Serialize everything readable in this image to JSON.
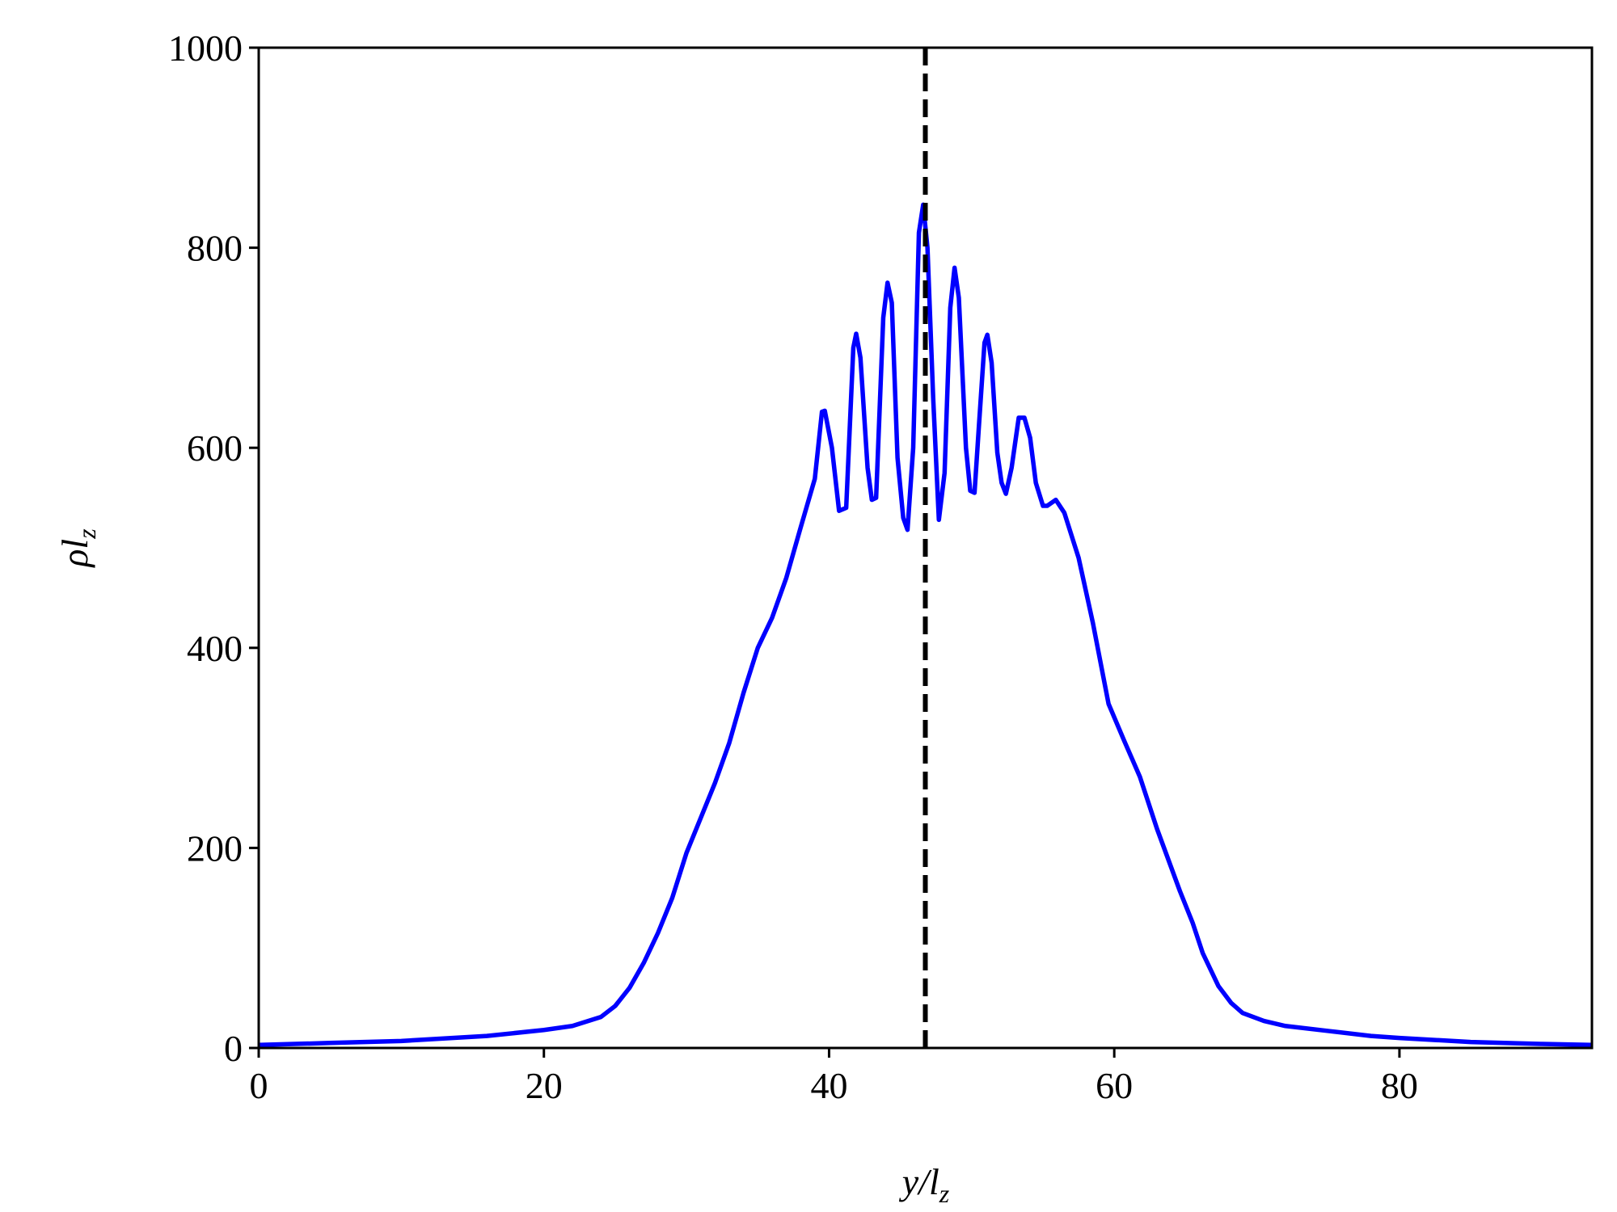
{
  "chart_data": {
    "type": "line",
    "xlabel": [
      "y/l",
      "z"
    ],
    "ylabel": [
      "ρl",
      "z"
    ],
    "x": [
      0,
      5,
      10,
      16,
      20,
      22,
      24,
      25,
      26,
      27,
      28,
      29,
      30,
      31,
      32,
      33,
      34,
      35,
      36,
      37,
      38,
      39,
      39.5,
      39.7,
      40.2,
      40.7,
      41.2,
      41.7,
      41.9,
      42.2,
      42.7,
      43.0,
      43.3,
      43.8,
      44.1,
      44.4,
      44.8,
      45.2,
      45.5,
      45.9,
      46.3,
      46.6,
      46.9,
      47.3,
      47.7,
      48.1,
      48.5,
      48.8,
      49.1,
      49.6,
      49.9,
      50.2,
      50.5,
      50.9,
      51.1,
      51.4,
      51.8,
      52.1,
      52.4,
      52.8,
      53.3,
      53.7,
      54.1,
      54.5,
      55.0,
      55.3,
      55.9,
      56.5,
      57.5,
      58.5,
      59.6,
      60.7,
      61.8,
      63,
      64.6,
      65.5,
      66.2,
      67.3,
      68.2,
      69,
      70.5,
      72,
      75,
      78,
      80,
      85,
      90,
      93.5
    ],
    "values": [
      3,
      5,
      7,
      12,
      18,
      22,
      31,
      42,
      60,
      85,
      115,
      150,
      195,
      230,
      265,
      305,
      355,
      400,
      430,
      470,
      520,
      569,
      636,
      637,
      600,
      537,
      540,
      700,
      714,
      690,
      580,
      548,
      550,
      730,
      765,
      745,
      590,
      530,
      518,
      600,
      815,
      843,
      800,
      650,
      528,
      575,
      740,
      780,
      750,
      600,
      557,
      555,
      620,
      705,
      713,
      685,
      595,
      565,
      554,
      580,
      630,
      630,
      610,
      565,
      542,
      542,
      548,
      535,
      490,
      425,
      344,
      307,
      271,
      219,
      157,
      125,
      95,
      62,
      45,
      35,
      27,
      22,
      17,
      12,
      10,
      6,
      4,
      3
    ],
    "color": "#0000ff",
    "vline_x": 46.75,
    "vline_color": "#000000",
    "xlim": [
      0,
      93.5
    ],
    "ylim": [
      0,
      1000
    ],
    "xticks": [
      0,
      20,
      40,
      60,
      80
    ],
    "yticks": [
      0,
      200,
      400,
      600,
      800,
      1000
    ]
  }
}
